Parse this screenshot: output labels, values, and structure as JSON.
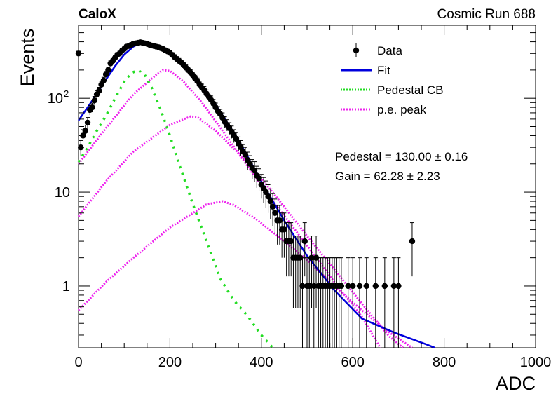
{
  "header": {
    "left": "CaloX",
    "right": "Cosmic Run 688"
  },
  "chart_data": {
    "type": "scatter",
    "title": "",
    "xlabel": "ADC",
    "ylabel": "Events",
    "xlim": [
      0,
      1000
    ],
    "ylim": [
      0.22,
      600
    ],
    "y_scale": "log",
    "grid": false,
    "legend_position": "top-right",
    "x_ticks": [
      0,
      200,
      400,
      600,
      800,
      1000
    ],
    "y_ticks": [
      {
        "value": 1,
        "label": "1"
      },
      {
        "value": 10,
        "label": "10"
      },
      {
        "value": 100,
        "label": "10",
        "exp": "2"
      }
    ],
    "legend": [
      {
        "label": "Data",
        "marker": "errorbar-point",
        "color": "#000000"
      },
      {
        "label": "Fit",
        "marker": "solid-line",
        "color": "#0000dd"
      },
      {
        "label": "Pedestal CB",
        "marker": "dotted-line",
        "color": "#22dd22"
      },
      {
        "label": "p.e. peak",
        "marker": "dotted-line",
        "color": "#ee22ee"
      }
    ],
    "annotations": [
      "Pedestal = 130.00 ± 0.16",
      "Gain = 62.28 ± 2.23"
    ],
    "bin_width": 5,
    "data": {
      "name": "Data",
      "color": "#000000",
      "points": [
        [
          0,
          300
        ],
        [
          5,
          30
        ],
        [
          10,
          40
        ],
        [
          15,
          45
        ],
        [
          20,
          55
        ],
        [
          25,
          75
        ],
        [
          30,
          80
        ],
        [
          35,
          95
        ],
        [
          40,
          110
        ],
        [
          45,
          120
        ],
        [
          50,
          140
        ],
        [
          55,
          155
        ],
        [
          60,
          180
        ],
        [
          65,
          200
        ],
        [
          70,
          235
        ],
        [
          75,
          250
        ],
        [
          80,
          270
        ],
        [
          85,
          290
        ],
        [
          90,
          300
        ],
        [
          95,
          320
        ],
        [
          100,
          335
        ],
        [
          105,
          355
        ],
        [
          110,
          360
        ],
        [
          115,
          370
        ],
        [
          120,
          380
        ],
        [
          125,
          385
        ],
        [
          130,
          390
        ],
        [
          135,
          395
        ],
        [
          140,
          390
        ],
        [
          145,
          385
        ],
        [
          150,
          380
        ],
        [
          155,
          372
        ],
        [
          160,
          365
        ],
        [
          165,
          360
        ],
        [
          170,
          355
        ],
        [
          175,
          350
        ],
        [
          180,
          342
        ],
        [
          185,
          335
        ],
        [
          190,
          325
        ],
        [
          195,
          315
        ],
        [
          200,
          305
        ],
        [
          205,
          290
        ],
        [
          210,
          275
        ],
        [
          215,
          262
        ],
        [
          220,
          250
        ],
        [
          225,
          240
        ],
        [
          230,
          225
        ],
        [
          235,
          212
        ],
        [
          240,
          200
        ],
        [
          245,
          188
        ],
        [
          250,
          176
        ],
        [
          255,
          163
        ],
        [
          260,
          152
        ],
        [
          265,
          140
        ],
        [
          270,
          130
        ],
        [
          275,
          122
        ],
        [
          280,
          112
        ],
        [
          285,
          104
        ],
        [
          290,
          96
        ],
        [
          295,
          88
        ],
        [
          300,
          80
        ],
        [
          305,
          73
        ],
        [
          310,
          68
        ],
        [
          315,
          62
        ],
        [
          320,
          56
        ],
        [
          325,
          52
        ],
        [
          330,
          48
        ],
        [
          335,
          44
        ],
        [
          340,
          40
        ],
        [
          345,
          37
        ],
        [
          350,
          33
        ],
        [
          355,
          30
        ],
        [
          360,
          27
        ],
        [
          365,
          25
        ],
        [
          370,
          22
        ],
        [
          375,
          20
        ],
        [
          380,
          18
        ],
        [
          385,
          17
        ],
        [
          390,
          15
        ],
        [
          395,
          14
        ],
        [
          400,
          12
        ],
        [
          405,
          11
        ],
        [
          410,
          10
        ],
        [
          415,
          9
        ],
        [
          420,
          8
        ],
        [
          425,
          7
        ],
        [
          430,
          6
        ],
        [
          435,
          5
        ],
        [
          440,
          5
        ],
        [
          445,
          4
        ],
        [
          450,
          4
        ],
        [
          455,
          3
        ],
        [
          460,
          3
        ],
        [
          465,
          3
        ],
        [
          470,
          2
        ],
        [
          475,
          2
        ],
        [
          480,
          2
        ],
        [
          485,
          2
        ],
        [
          490,
          1
        ],
        [
          495,
          3
        ],
        [
          500,
          1
        ],
        [
          505,
          1
        ],
        [
          510,
          2
        ],
        [
          515,
          1
        ],
        [
          520,
          2
        ],
        [
          525,
          1
        ],
        [
          530,
          1
        ],
        [
          535,
          1
        ],
        [
          540,
          1
        ],
        [
          545,
          1
        ],
        [
          550,
          1
        ],
        [
          555,
          1
        ],
        [
          560,
          1
        ],
        [
          565,
          1
        ],
        [
          570,
          1
        ],
        [
          575,
          1
        ],
        [
          590,
          1
        ],
        [
          600,
          1
        ],
        [
          615,
          1
        ],
        [
          630,
          1
        ],
        [
          650,
          1
        ],
        [
          670,
          1
        ],
        [
          690,
          1
        ],
        [
          700,
          1
        ],
        [
          730,
          3
        ]
      ]
    },
    "fit": {
      "name": "Fit",
      "color": "#0000dd",
      "points": [
        [
          0,
          58
        ],
        [
          20,
          80
        ],
        [
          40,
          112
        ],
        [
          60,
          158
        ],
        [
          80,
          220
        ],
        [
          100,
          292
        ],
        [
          120,
          355
        ],
        [
          135,
          385
        ],
        [
          150,
          380
        ],
        [
          170,
          352
        ],
        [
          200,
          300
        ],
        [
          230,
          222
        ],
        [
          260,
          155
        ],
        [
          300,
          85
        ],
        [
          350,
          36
        ],
        [
          400,
          13
        ],
        [
          450,
          5
        ],
        [
          500,
          2.1
        ],
        [
          560,
          0.9
        ],
        [
          620,
          0.45
        ],
        [
          690,
          0.32
        ],
        [
          760,
          0.24
        ],
        [
          780,
          0.22
        ]
      ]
    },
    "pedestal": {
      "name": "Pedestal CB",
      "color": "#22dd22",
      "points": [
        [
          0,
          21
        ],
        [
          20,
          30
        ],
        [
          40,
          45
        ],
        [
          60,
          65
        ],
        [
          80,
          100
        ],
        [
          100,
          150
        ],
        [
          115,
          185
        ],
        [
          130,
          200
        ],
        [
          145,
          178
        ],
        [
          160,
          130
        ],
        [
          180,
          75
        ],
        [
          200,
          40
        ],
        [
          220,
          20
        ],
        [
          250,
          7.5
        ],
        [
          280,
          3
        ],
        [
          310,
          1.2
        ],
        [
          340,
          0.7
        ],
        [
          370,
          0.48
        ],
        [
          400,
          0.3
        ],
        [
          425,
          0.2
        ]
      ]
    },
    "pe_peaks": [
      {
        "name": "p.e. peak",
        "color": "#ee22ee",
        "points": [
          [
            0,
            20
          ],
          [
            60,
            48
          ],
          [
            120,
            110
          ],
          [
            170,
            178
          ],
          [
            185,
            200
          ],
          [
            200,
            196
          ],
          [
            230,
            150
          ],
          [
            270,
            90
          ],
          [
            320,
            42
          ],
          [
            380,
            16
          ],
          [
            440,
            6.5
          ],
          [
            500,
            2.7
          ],
          [
            560,
            1.1
          ],
          [
            620,
            0.47
          ],
          [
            660,
            0.22
          ]
        ]
      },
      {
        "name": "p.e. peak",
        "color": "#ee22ee",
        "points": [
          [
            0,
            5.5
          ],
          [
            60,
            13
          ],
          [
            120,
            27
          ],
          [
            200,
            52
          ],
          [
            245,
            64
          ],
          [
            260,
            63
          ],
          [
            300,
            45
          ],
          [
            350,
            26
          ],
          [
            400,
            14
          ],
          [
            450,
            7
          ],
          [
            500,
            3.4
          ],
          [
            560,
            1.5
          ],
          [
            620,
            0.65
          ],
          [
            680,
            0.29
          ],
          [
            710,
            0.22
          ]
        ]
      },
      {
        "name": "p.e. peak",
        "color": "#ee22ee",
        "points": [
          [
            0,
            0.55
          ],
          [
            60,
            1.1
          ],
          [
            120,
            2
          ],
          [
            200,
            4.2
          ],
          [
            280,
            7.4
          ],
          [
            315,
            8
          ],
          [
            340,
            7.3
          ],
          [
            390,
            5.1
          ],
          [
            450,
            3
          ],
          [
            500,
            1.9
          ],
          [
            560,
            1
          ],
          [
            620,
            0.55
          ],
          [
            680,
            0.32
          ],
          [
            730,
            0.22
          ]
        ]
      }
    ]
  }
}
